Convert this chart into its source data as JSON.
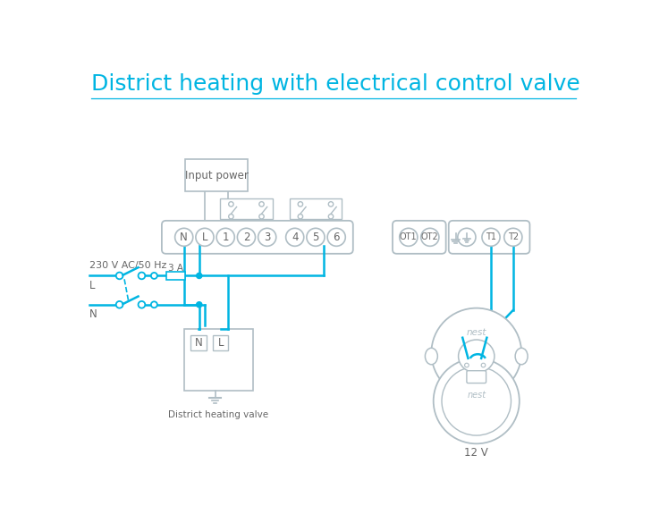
{
  "title": "District heating with electrical control valve",
  "title_color": "#00b5e2",
  "title_fontsize": 18,
  "line_color": "#00b5e2",
  "bg_color": "#ffffff",
  "gray": "#9e9e9e",
  "dark_gray": "#666666",
  "light_gray": "#b0bec5",
  "fuse_label": "3 A",
  "input_power_label": "Input power",
  "district_valve_label": "District heating valve",
  "nest_label": "12 V",
  "ac_label": "230 V AC/50 Hz",
  "l_label": "L",
  "n_label": "N"
}
